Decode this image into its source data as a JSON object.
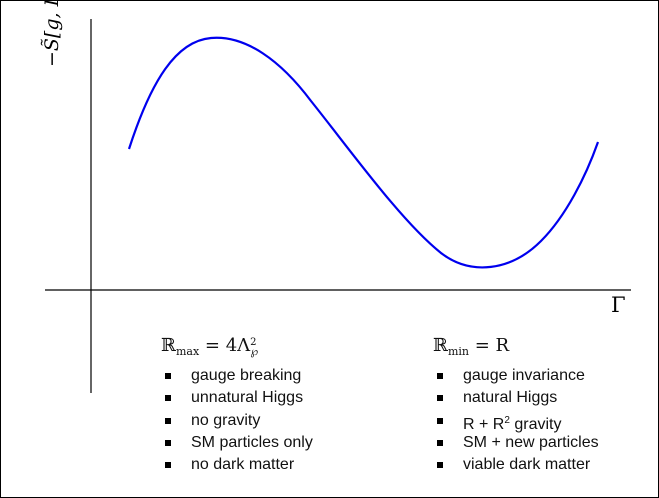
{
  "axes": {
    "y_label": "−S̃[g, Γ]",
    "x_label": "Γ"
  },
  "curve": {
    "color": "#0000ee",
    "shape": "cubic"
  },
  "left_block": {
    "head_symbol": "ℝ",
    "head_sub": "max",
    "head_rest": " = 4Λ",
    "head_sup": "2",
    "head_sub2": "℘",
    "items": [
      "gauge breaking",
      "unnatural Higgs",
      "no gravity",
      "SM particles only",
      "no dark matter"
    ]
  },
  "right_block": {
    "head_symbol": "ℝ",
    "head_sub": "min",
    "head_rest": " = R",
    "items_plain": [
      "gauge invariance",
      "natural Higgs"
    ],
    "gravity_item": {
      "pre": "R + R",
      "sup": "2",
      "post": " gravity"
    },
    "items_plain2": [
      "SM + new particles",
      "viable dark matter"
    ]
  }
}
